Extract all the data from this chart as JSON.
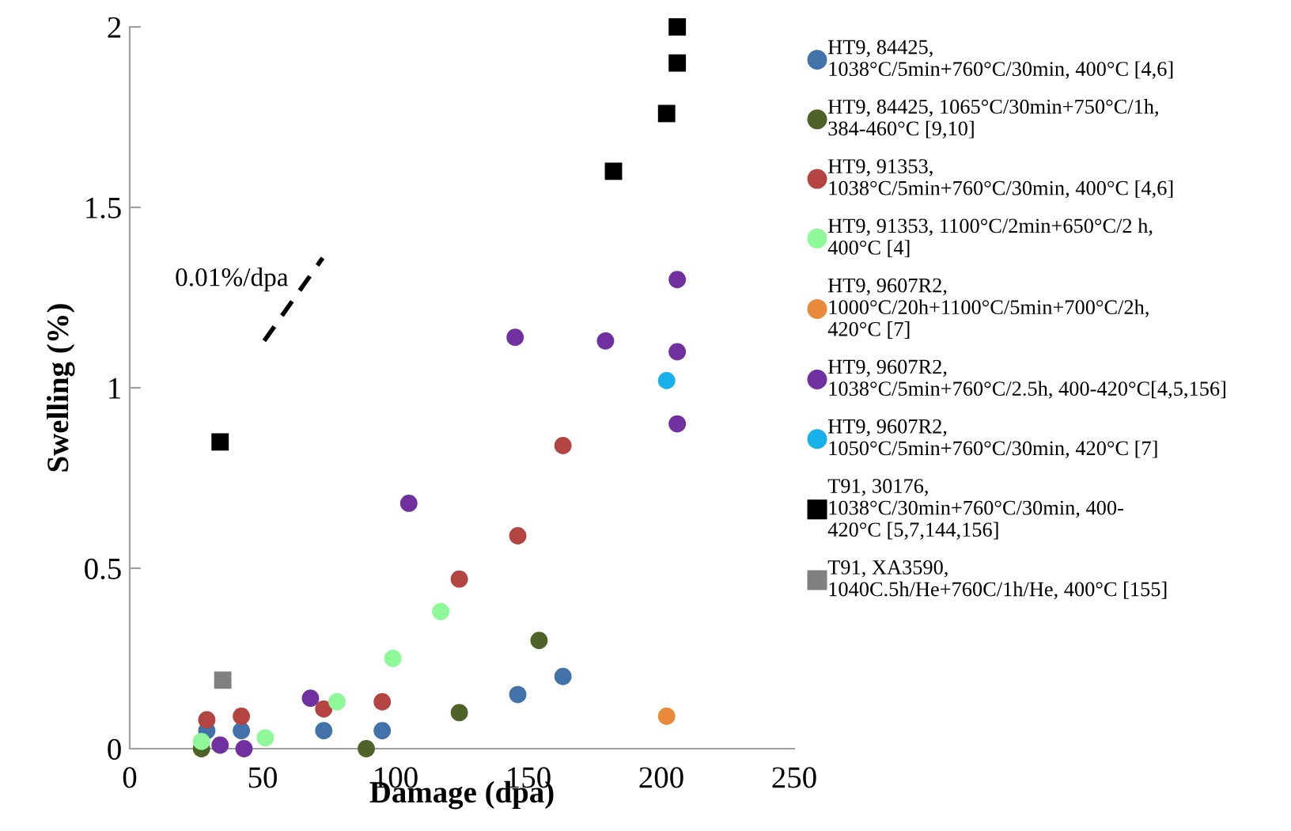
{
  "chart_data": {
    "type": "scatter",
    "xlabel": "Damage (dpa)",
    "ylabel": "Swelling (%)",
    "xlim": [
      0,
      250
    ],
    "xticks": [
      0,
      50,
      100,
      150,
      200,
      250
    ],
    "ylim": [
      0,
      2
    ],
    "yticks": [
      0,
      0.5,
      1,
      1.5,
      2
    ],
    "grid": false,
    "legend": "right",
    "marker": "circle",
    "annotations": [
      "0.01%/dpa"
    ],
    "series": [
      {
        "name": "HT9, 84425,\n1038°C/5min+760°C/30min, 400°C [4,6]",
        "color": "#4272aa",
        "x": [
          29,
          42,
          73,
          95,
          146,
          163
        ],
        "values": [
          0.05,
          0.05,
          0.05,
          0.05,
          0.15,
          0.2
        ]
      },
      {
        "name": "HT9, 84425, 1065°C/30min+750°C/1h,\n384-460°C [9,10]",
        "color": "#4f6228",
        "x": [
          27,
          89,
          124,
          154
        ],
        "values": [
          0,
          0,
          0.1,
          0.3
        ]
      },
      {
        "name": "HT9, 91353,\n1038°C/5min+760°C/30min, 400°C [4,6]",
        "color": "#b34442",
        "x": [
          29,
          42,
          73,
          95,
          124,
          146,
          163
        ],
        "values": [
          0.08,
          0.09,
          0.11,
          0.13,
          0.47,
          0.59,
          0.84
        ]
      },
      {
        "name": "HT9, 91353, 1100°C/2min+650°C/2 h,\n400°C [4]",
        "color": "#8ff99a",
        "x": [
          27,
          51,
          78,
          99,
          117
        ],
        "values": [
          0.02,
          0.03,
          0.13,
          0.25,
          0.38
        ]
      },
      {
        "name": "HT9, 9607R2,\n1000°C/20h+1100°C/5min+700°C/2h,\n420°C [7]",
        "color": "#e88a3a",
        "x": [
          202
        ],
        "values": [
          0.09
        ]
      },
      {
        "name": "HT9, 9607R2,\n1038°C/5min+760°C/2.5h, 400-420°C[4,5,156]",
        "color": "#7030a0",
        "x": [
          34,
          43,
          68,
          105,
          145,
          179,
          206,
          206,
          206
        ],
        "values": [
          0.01,
          0,
          0.14,
          0.68,
          1.14,
          1.13,
          0.9,
          1.1,
          1.3
        ]
      },
      {
        "name": "HT9, 9607R2,\n1050°C/5min+760°C/30min, 420°C [7]",
        "color": "#18b0e8",
        "x": [
          202
        ],
        "values": [
          1.02
        ]
      },
      {
        "name": "T91, 30176,\n1038°C/30min+760°C/30min, 400-\n420°C [5,7,144,156]",
        "color": "#000000",
        "marker": "square",
        "x": [
          34,
          182,
          202,
          206,
          206
        ],
        "values": [
          0.85,
          1.6,
          1.76,
          1.9,
          2.0
        ]
      },
      {
        "name": "T91, XA3590,\n1040C.5h/He+760C/1h/He, 400°C [155]",
        "color": "#808080",
        "marker": "square",
        "x": [
          35
        ],
        "values": [
          0.19
        ]
      },
      {
        "type": "line",
        "color": "#000000",
        "line_style": "dashed",
        "marker": "none",
        "x": [
          50.6,
          72.6
        ],
        "values": [
          1.13,
          1.36
        ]
      }
    ]
  }
}
